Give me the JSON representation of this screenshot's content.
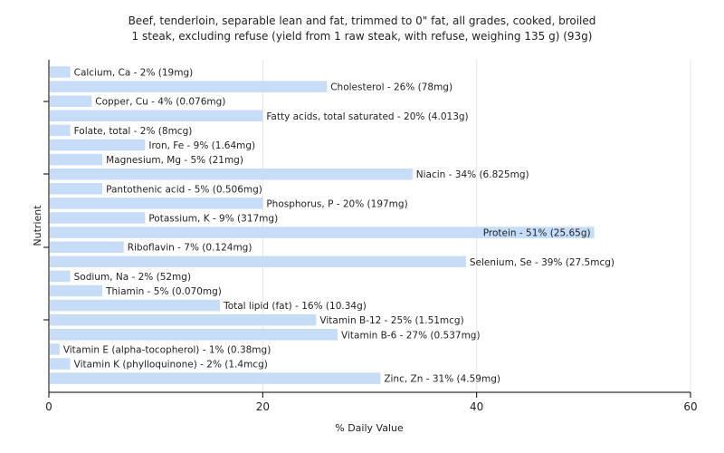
{
  "chart_data": {
    "type": "bar",
    "orientation": "horizontal",
    "title": "Beef, tenderloin, separable lean and fat, trimmed to 0\" fat, all grades, cooked, broiled",
    "subtitle": "1 steak, excluding refuse (yield from 1 raw steak, with refuse, weighing 135 g) (93g)",
    "xlabel": "% Daily Value",
    "ylabel": "Nutrient",
    "xlim": [
      0,
      60
    ],
    "xticks": [
      0,
      20,
      40,
      60
    ],
    "grid": true,
    "bar_color": "#c6dcf7",
    "categories": [
      "Calcium, Ca",
      "Cholesterol",
      "Copper, Cu",
      "Fatty acids, total saturated",
      "Folate, total",
      "Iron, Fe",
      "Magnesium, Mg",
      "Niacin",
      "Pantothenic acid",
      "Phosphorus, P",
      "Potassium, K",
      "Protein",
      "Riboflavin",
      "Selenium, Se",
      "Sodium, Na",
      "Thiamin",
      "Total lipid (fat)",
      "Vitamin B-12",
      "Vitamin B-6",
      "Vitamin E (alpha-tocopherol)",
      "Vitamin K (phylloquinone)",
      "Zinc, Zn"
    ],
    "values": [
      2,
      26,
      4,
      20,
      2,
      9,
      5,
      34,
      5,
      20,
      9,
      51,
      7,
      39,
      2,
      5,
      16,
      25,
      27,
      1,
      2,
      31
    ],
    "labels": [
      "Calcium, Ca - 2% (19mg)",
      "Cholesterol - 26% (78mg)",
      "Copper, Cu - 4% (0.076mg)",
      "Fatty acids, total saturated - 20% (4.013g)",
      "Folate, total - 2% (8mcg)",
      "Iron, Fe - 9% (1.64mg)",
      "Magnesium, Mg - 5% (21mg)",
      "Niacin - 34% (6.825mg)",
      "Pantothenic acid - 5% (0.506mg)",
      "Phosphorus, P - 20% (197mg)",
      "Potassium, K - 9% (317mg)",
      "Protein - 51% (25.65g)",
      "Riboflavin - 7% (0.124mg)",
      "Selenium, Se - 39% (27.5mcg)",
      "Sodium, Na - 2% (52mg)",
      "Thiamin - 5% (0.070mg)",
      "Total lipid (fat) - 16% (10.34g)",
      "Vitamin B-12 - 25% (1.51mcg)",
      "Vitamin B-6 - 27% (0.537mg)",
      "Vitamin E (alpha-tocopherol) - 1% (0.38mg)",
      "Vitamin K (phylloquinone) - 2% (1.4mcg)",
      "Zinc, Zn - 31% (4.59mg)"
    ]
  }
}
